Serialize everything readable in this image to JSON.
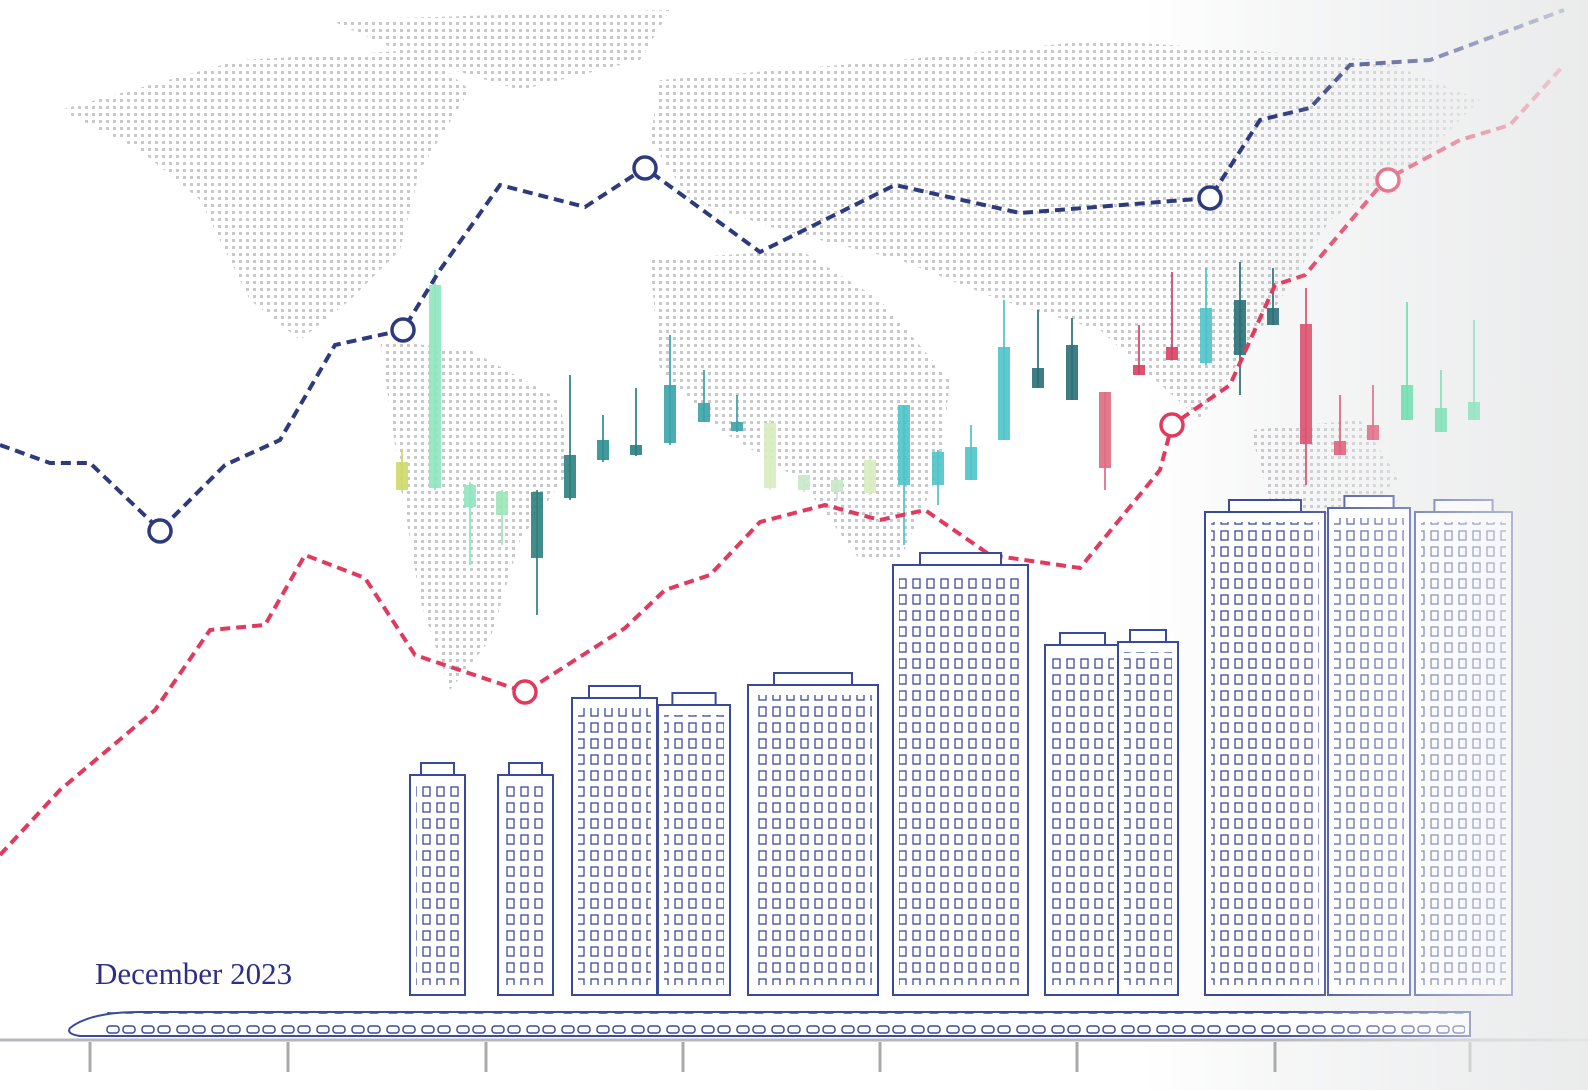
{
  "cover": {
    "date": "December 2023"
  }
}
